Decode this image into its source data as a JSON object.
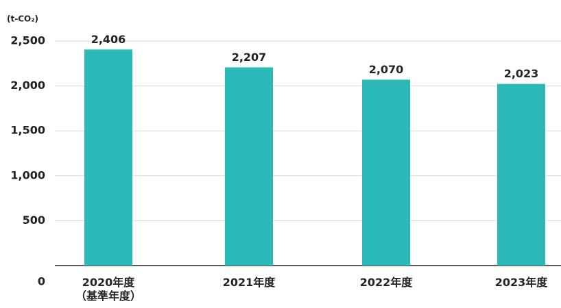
{
  "chart_data": {
    "type": "bar",
    "y_label": "(t-CO₂)",
    "categories": [
      "2020年度\n（基準年度）",
      "2021年度",
      "2022年度",
      "2023年度"
    ],
    "values": [
      2406,
      2207,
      2070,
      2023
    ],
    "value_labels": [
      "2,406",
      "2,207",
      "2,070",
      "2,023"
    ],
    "color": "#2bb9b8",
    "ylim": [
      0,
      2500
    ],
    "yticks": [
      0,
      500,
      {
        "value": 1000,
        "label": "1,000"
      },
      {
        "value": 1500,
        "label": "1,500"
      },
      {
        "value": 2000,
        "label": "2,000"
      },
      {
        "value": 2500,
        "label": "2,500"
      }
    ],
    "grid": true
  }
}
